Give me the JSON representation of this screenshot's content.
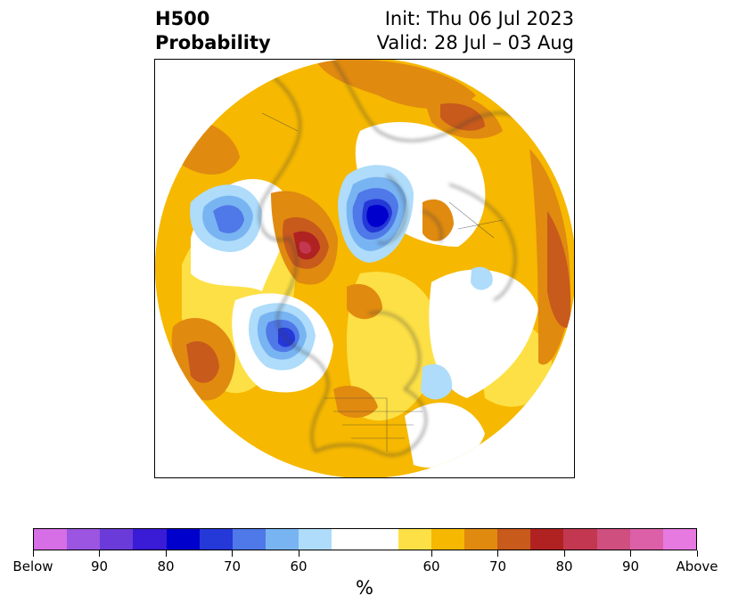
{
  "title": {
    "left_line1": "H500",
    "left_line2": "Probability",
    "right_line1": "Init: Thu 06 Jul 2023",
    "right_line2": "Valid: 28 Jul – 03 Aug"
  },
  "map": {
    "projection": "north-polar-stereographic",
    "land_outline_color": "#404040",
    "anomalies": [
      {
        "category": "below",
        "level": "50-60",
        "region": "Northeast Pacific / Gulf of Alaska"
      },
      {
        "category": "below",
        "level": "75-80",
        "region": "Greenland / Baffin Bay"
      },
      {
        "category": "below",
        "level": "50-60",
        "region": "Eastern Pacific west of US coast"
      },
      {
        "category": "below",
        "level": "50-60",
        "region": "Western Atlantic off Canadian Maritimes"
      },
      {
        "category": "above",
        "level": "80-85",
        "region": "Western Europe / Scandinavia"
      },
      {
        "category": "above",
        "level": "70-75",
        "region": "Central Pacific"
      },
      {
        "category": "above",
        "level": "60-65",
        "region": "Central United States"
      }
    ]
  },
  "colorbar": {
    "unit_label": "%",
    "colors": [
      "#d66ee6",
      "#9b55e0",
      "#6a3bd8",
      "#3a1bd6",
      "#0000cc",
      "#2538d8",
      "#4f78e8",
      "#79b4f2",
      "#aedcfa",
      "#ffffff",
      "#fde045",
      "#f6b800",
      "#e08a10",
      "#c85a1c",
      "#b02222",
      "#c33850",
      "#cf4f7f",
      "#dc60a8",
      "#e67ae0"
    ],
    "tick_labels": [
      "Below",
      "90",
      "80",
      "70",
      "60",
      "60",
      "70",
      "80",
      "90",
      "Above"
    ]
  }
}
